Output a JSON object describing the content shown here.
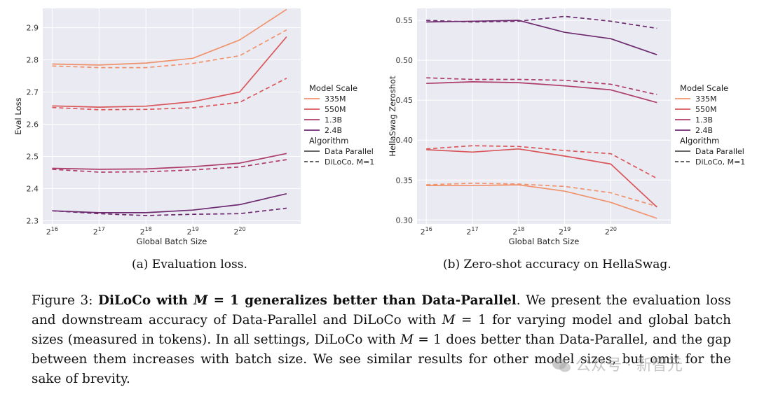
{
  "chart_data": [
    {
      "type": "line",
      "xlabel": "Global Batch Size",
      "ylabel": "Eval Loss",
      "x": [
        16,
        17,
        18,
        19,
        20,
        21
      ],
      "x_tick_values": [
        16,
        17,
        18,
        19,
        20
      ],
      "x_tick_base": "2",
      "x_scale": "log2",
      "y_ticks": [
        "2.3",
        "2.4",
        "2.5",
        "2.6",
        "2.7",
        "2.8",
        "2.9"
      ],
      "y_tick_values": [
        2.3,
        2.4,
        2.5,
        2.6,
        2.7,
        2.8,
        2.9
      ],
      "ylim": [
        2.29,
        2.96
      ],
      "xlim": [
        15.8,
        21.3
      ],
      "grid": true,
      "legend_position": "right",
      "series": [
        {
          "name": "335M",
          "algorithm": "Data Parallel",
          "color": "#f0936d",
          "dashed": false,
          "values": [
            2.787,
            2.784,
            2.79,
            2.805,
            2.862,
            2.957
          ]
        },
        {
          "name": "335M",
          "algorithm": "DiLoCo, M=1",
          "color": "#f0936d",
          "dashed": true,
          "values": [
            2.781,
            2.776,
            2.776,
            2.789,
            2.813,
            2.893
          ]
        },
        {
          "name": "550M",
          "algorithm": "Data Parallel",
          "color": "#d9575a",
          "dashed": false,
          "values": [
            2.657,
            2.653,
            2.656,
            2.67,
            2.7,
            2.872
          ]
        },
        {
          "name": "550M",
          "algorithm": "DiLoCo, M=1",
          "color": "#d9575a",
          "dashed": true,
          "values": [
            2.652,
            2.645,
            2.646,
            2.651,
            2.668,
            2.743
          ]
        },
        {
          "name": "1.3B",
          "algorithm": "Data Parallel",
          "color": "#ad3d6a",
          "dashed": false,
          "values": [
            2.463,
            2.46,
            2.461,
            2.468,
            2.479,
            2.509
          ]
        },
        {
          "name": "1.3B",
          "algorithm": "DiLoCo, M=1",
          "color": "#ad3d6a",
          "dashed": true,
          "values": [
            2.46,
            2.451,
            2.452,
            2.458,
            2.467,
            2.49
          ]
        },
        {
          "name": "2.4B",
          "algorithm": "Data Parallel",
          "color": "#6d2a6f",
          "dashed": false,
          "values": [
            2.331,
            2.325,
            2.325,
            2.333,
            2.35,
            2.384
          ]
        },
        {
          "name": "2.4B",
          "algorithm": "DiLoCo, M=1",
          "color": "#6d2a6f",
          "dashed": true,
          "values": [
            2.331,
            2.322,
            2.316,
            2.32,
            2.322,
            2.339
          ]
        }
      ]
    },
    {
      "type": "line",
      "xlabel": "Global Batch Size",
      "ylabel": "HellaSwag Zeroshot",
      "x": [
        16,
        17,
        18,
        19,
        20,
        21
      ],
      "x_tick_values": [
        16,
        17,
        18,
        19,
        20
      ],
      "x_tick_base": "2",
      "x_scale": "log2",
      "y_ticks": [
        "0.30",
        "0.35",
        "0.40",
        "0.45",
        "0.50",
        "0.55"
      ],
      "y_tick_values": [
        0.3,
        0.35,
        0.4,
        0.45,
        0.5,
        0.55
      ],
      "ylim": [
        0.295,
        0.565
      ],
      "xlim": [
        15.8,
        21.3
      ],
      "grid": true,
      "legend_position": "right",
      "series": [
        {
          "name": "335M",
          "algorithm": "Data Parallel",
          "color": "#f0936d",
          "dashed": false,
          "values": [
            0.343,
            0.343,
            0.344,
            0.336,
            0.322,
            0.302
          ]
        },
        {
          "name": "335M",
          "algorithm": "DiLoCo, M=1",
          "color": "#f0936d",
          "dashed": true,
          "values": [
            0.344,
            0.346,
            0.345,
            0.342,
            0.334,
            0.317
          ]
        },
        {
          "name": "550M",
          "algorithm": "Data Parallel",
          "color": "#d9575a",
          "dashed": false,
          "values": [
            0.388,
            0.385,
            0.389,
            0.38,
            0.37,
            0.316
          ]
        },
        {
          "name": "550M",
          "algorithm": "DiLoCo, M=1",
          "color": "#d9575a",
          "dashed": true,
          "values": [
            0.389,
            0.393,
            0.392,
            0.387,
            0.383,
            0.352
          ]
        },
        {
          "name": "1.3B",
          "algorithm": "Data Parallel",
          "color": "#ad3d6a",
          "dashed": false,
          "values": [
            0.471,
            0.473,
            0.472,
            0.468,
            0.463,
            0.447
          ]
        },
        {
          "name": "1.3B",
          "algorithm": "DiLoCo, M=1",
          "color": "#ad3d6a",
          "dashed": true,
          "values": [
            0.478,
            0.476,
            0.476,
            0.475,
            0.47,
            0.457
          ]
        },
        {
          "name": "2.4B",
          "algorithm": "Data Parallel",
          "color": "#6d2a6f",
          "dashed": false,
          "values": [
            0.548,
            0.549,
            0.55,
            0.535,
            0.527,
            0.507
          ]
        },
        {
          "name": "2.4B",
          "algorithm": "DiLoCo, M=1",
          "color": "#6d2a6f",
          "dashed": true,
          "values": [
            0.55,
            0.548,
            0.549,
            0.555,
            0.549,
            0.54
          ]
        }
      ]
    }
  ],
  "legend": {
    "scale_title": "Model Scale",
    "scale_items": [
      {
        "label": "335M",
        "color": "#f0936d"
      },
      {
        "label": "550M",
        "color": "#d9575a"
      },
      {
        "label": "1.3B",
        "color": "#ad3d6a"
      },
      {
        "label": "2.4B",
        "color": "#6d2a6f"
      }
    ],
    "algo_title": "Algorithm",
    "algo_items": [
      {
        "label": "Data Parallel",
        "dashed": false
      },
      {
        "label": "DiLoCo, M=1",
        "dashed": true
      }
    ]
  },
  "captions": {
    "a": "(a) Evaluation loss.",
    "b": "(b) Zero-shot accuracy on HellaSwag.",
    "figure_label": "Figure 3:",
    "bold_1": "DiLoCo with",
    "bold_math_var": "M",
    "bold_math_rest": " = 1",
    "bold_2": "generalizes better than Data-Parallel",
    "body_1": ". We present the evaluation loss and downstream accuracy of Data-Parallel and DiLoCo with ",
    "math_var": "M",
    "math_rest": " = 1",
    "body_2": " for varying model and global batch sizes (measured in tokens). In all settings, DiLoCo with ",
    "body_3": " does better than Data-Parallel, and the gap between them increases with batch size. We see similar results for other model sizes, but omit for the sake of brevity."
  },
  "watermark": {
    "text": "公众号 · 新智元",
    "icon": "wechat-icon"
  }
}
